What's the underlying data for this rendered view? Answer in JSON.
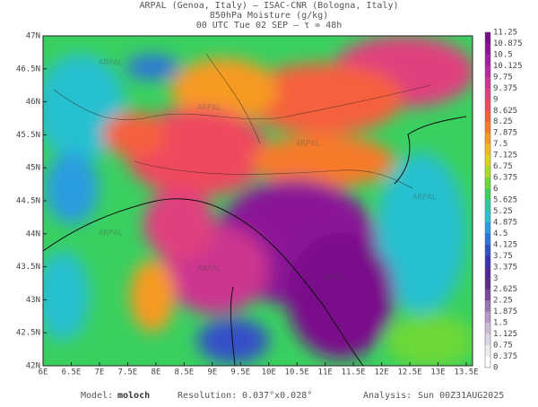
{
  "header": {
    "line1": "ARPAL (Genoa, Italy)  —  ISAC-CNR (Bologna, Italy)",
    "line2": "850hPa Moisture (g/kg)",
    "line3": "00 UTC Tue 02 SEP  –  τ = 48h"
  },
  "latitude_labels": [
    "47N",
    "46.5N",
    "46N",
    "45.5N",
    "45N",
    "44.5N",
    "44N",
    "43.5N",
    "43N",
    "42.5N",
    "42N"
  ],
  "longitude_labels": [
    "6E",
    "6.5E",
    "7E",
    "7.5E",
    "8E",
    "8.5E",
    "9E",
    "9.5E",
    "10E",
    "10.5E",
    "11E",
    "11.5E",
    "12E",
    "12.5E",
    "13E",
    "13.5E"
  ],
  "watermark": "ARPAL",
  "colorbar": {
    "levels": [
      11.25,
      10.875,
      10.5,
      10.125,
      9.75,
      9.375,
      9,
      8.625,
      8.25,
      7.875,
      7.5,
      7.125,
      6.75,
      6.375,
      6,
      5.625,
      5.25,
      4.875,
      4.5,
      4.125,
      3.75,
      3.375,
      3,
      2.625,
      2.25,
      1.875,
      1.5,
      1.125,
      0.75,
      0.375,
      0
    ],
    "colors": [
      "#7a0a8a",
      "#8a1296",
      "#9e1fa0",
      "#b42a9c",
      "#cc3590",
      "#e0407e",
      "#ee4a5e",
      "#f5603c",
      "#f77a2a",
      "#f79a22",
      "#f0ba1e",
      "#d8d41e",
      "#a8dc28",
      "#6cd838",
      "#3ad060",
      "#2cc8a0",
      "#28c0d0",
      "#2a9ce0",
      "#2f74d8",
      "#3450c8",
      "#3a34b0",
      "#4a2a98",
      "#5e2a88",
      "#7a4a98",
      "#9a74b0",
      "#b49ac4",
      "#c8bcd4",
      "#dcd6e0",
      "#eeeeee",
      "#ffffff"
    ]
  },
  "footer": {
    "model_label": "Model:",
    "model": "moloch",
    "resolution_label": "Resolution:",
    "resolution": "0.037°x0.028°",
    "analysis_label": "Analysis:",
    "analysis": "Sun 00Z31AUG2025"
  }
}
